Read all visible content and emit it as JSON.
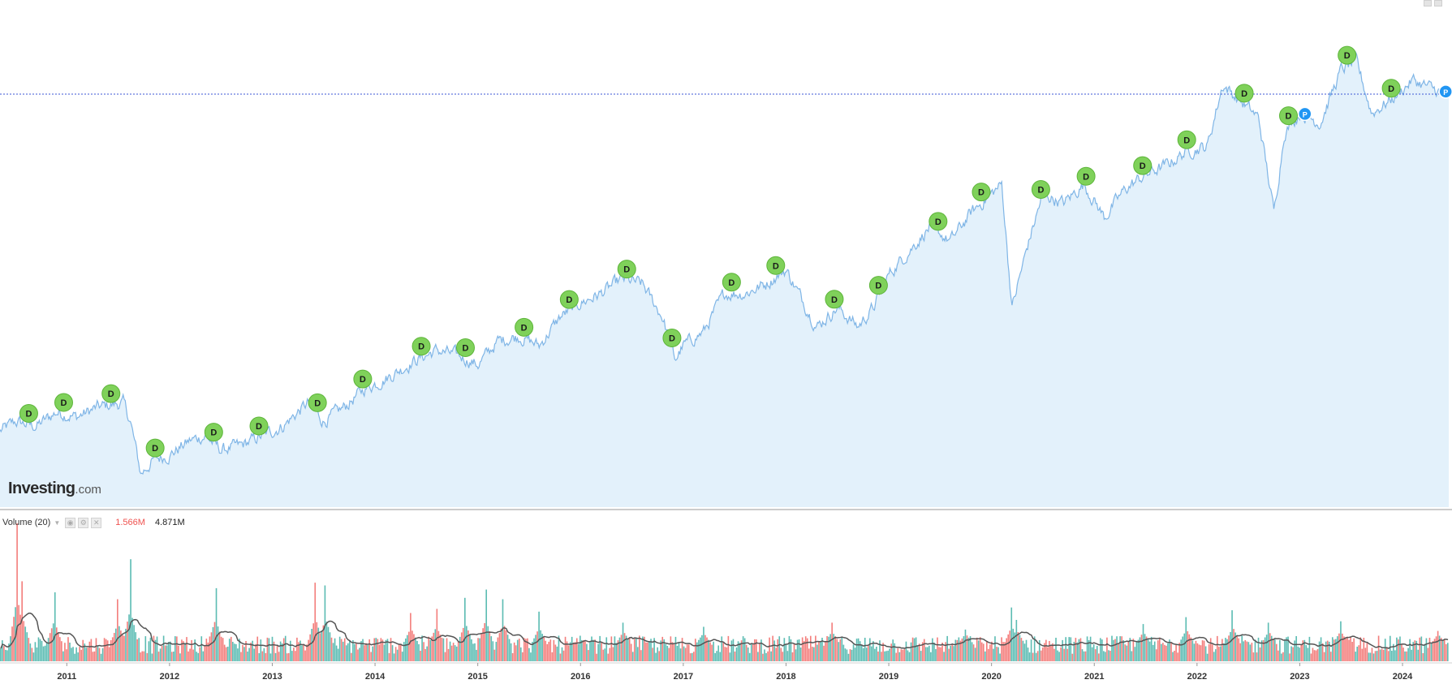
{
  "branding": {
    "logo_main": "Investing",
    "logo_suffix": ".com"
  },
  "volume_panel": {
    "title": "Volume (20)",
    "value_red": "1.566M",
    "value_black": "4.871M"
  },
  "colors": {
    "price_line": "#7fb5e6",
    "price_fill": "#e3f1fb",
    "ref_line": "#3b56d6",
    "dividend_marker": "#7fd15a",
    "dividend_marker_border": "#5db53a",
    "split_marker": "#2196f3",
    "volume_up": "#26a69a",
    "volume_down": "#ef5350",
    "volume_ma": "#555555"
  },
  "chart_data": [
    {
      "type": "area",
      "title": "",
      "xlabel": "",
      "ylabel": "",
      "x_ticks": [
        "2011",
        "2012",
        "2013",
        "2014",
        "2015",
        "2016",
        "2017",
        "2018",
        "2019",
        "2020",
        "2021",
        "2022",
        "2023",
        "2024"
      ],
      "x_range": [
        2010.35,
        2024.45
      ],
      "y_range": [
        0,
        100
      ],
      "y_axis_labels_visible": false,
      "grid": false,
      "reference_line": {
        "style": "dotted",
        "level": 87
      },
      "series": [
        {
          "values_relative": [
            [
              2010.35,
              16
            ],
            [
              2010.5,
              18
            ],
            [
              2010.7,
              17
            ],
            [
              2010.9,
              20
            ],
            [
              2011.1,
              19
            ],
            [
              2011.3,
              21
            ],
            [
              2011.55,
              22
            ],
            [
              2011.62,
              18
            ],
            [
              2011.72,
              7
            ],
            [
              2011.85,
              10
            ],
            [
              2012.0,
              11
            ],
            [
              2012.2,
              14
            ],
            [
              2012.35,
              15
            ],
            [
              2012.5,
              12
            ],
            [
              2012.7,
              13
            ],
            [
              2012.9,
              15
            ],
            [
              2013.1,
              17
            ],
            [
              2013.35,
              22
            ],
            [
              2013.5,
              18
            ],
            [
              2013.7,
              21
            ],
            [
              2013.9,
              25
            ],
            [
              2014.1,
              27
            ],
            [
              2014.4,
              31
            ],
            [
              2014.6,
              33
            ],
            [
              2014.8,
              32
            ],
            [
              2015.0,
              30
            ],
            [
              2015.2,
              35
            ],
            [
              2015.4,
              36
            ],
            [
              2015.6,
              34
            ],
            [
              2015.8,
              40
            ],
            [
              2016.0,
              43
            ],
            [
              2016.2,
              45
            ],
            [
              2016.4,
              48
            ],
            [
              2016.6,
              47
            ],
            [
              2016.8,
              40
            ],
            [
              2016.92,
              31
            ],
            [
              2017.0,
              34
            ],
            [
              2017.2,
              37
            ],
            [
              2017.4,
              45
            ],
            [
              2017.6,
              45
            ],
            [
              2017.8,
              47
            ],
            [
              2018.0,
              50
            ],
            [
              2018.15,
              44
            ],
            [
              2018.3,
              38
            ],
            [
              2018.5,
              42
            ],
            [
              2018.7,
              38
            ],
            [
              2018.85,
              42
            ],
            [
              2019.0,
              49
            ],
            [
              2019.2,
              54
            ],
            [
              2019.4,
              59
            ],
            [
              2019.6,
              56
            ],
            [
              2019.8,
              62
            ],
            [
              2020.1,
              68
            ],
            [
              2020.2,
              42
            ],
            [
              2020.35,
              55
            ],
            [
              2020.5,
              66
            ],
            [
              2020.7,
              64
            ],
            [
              2020.9,
              68
            ],
            [
              2021.1,
              61
            ],
            [
              2021.3,
              67
            ],
            [
              2021.5,
              70
            ],
            [
              2021.7,
              72
            ],
            [
              2021.9,
              75
            ],
            [
              2022.1,
              76
            ],
            [
              2022.25,
              89
            ],
            [
              2022.4,
              86
            ],
            [
              2022.6,
              82
            ],
            [
              2022.75,
              62
            ],
            [
              2022.85,
              79
            ],
            [
              2023.0,
              83
            ],
            [
              2023.2,
              81
            ],
            [
              2023.4,
              92
            ],
            [
              2023.55,
              94
            ],
            [
              2023.7,
              83
            ],
            [
              2023.9,
              86
            ],
            [
              2024.1,
              90
            ],
            [
              2024.3,
              88
            ],
            [
              2024.45,
              87
            ]
          ]
        }
      ],
      "event_markers": [
        {
          "label": "D",
          "x": 2010.63
        },
        {
          "label": "D",
          "x": 2010.97
        },
        {
          "label": "D",
          "x": 2011.43
        },
        {
          "label": "D",
          "x": 2011.86
        },
        {
          "label": "D",
          "x": 2012.43
        },
        {
          "label": "D",
          "x": 2012.87
        },
        {
          "label": "D",
          "x": 2013.44
        },
        {
          "label": "D",
          "x": 2013.88
        },
        {
          "label": "D",
          "x": 2014.45
        },
        {
          "label": "D",
          "x": 2014.88
        },
        {
          "label": "D",
          "x": 2015.45
        },
        {
          "label": "D",
          "x": 2015.89
        },
        {
          "label": "D",
          "x": 2016.45
        },
        {
          "label": "D",
          "x": 2016.89
        },
        {
          "label": "D",
          "x": 2017.47
        },
        {
          "label": "D",
          "x": 2017.9
        },
        {
          "label": "D",
          "x": 2018.47
        },
        {
          "label": "D",
          "x": 2018.9
        },
        {
          "label": "D",
          "x": 2019.48
        },
        {
          "label": "D",
          "x": 2019.9
        },
        {
          "label": "D",
          "x": 2020.48
        },
        {
          "label": "D",
          "x": 2020.92
        },
        {
          "label": "D",
          "x": 2021.47
        },
        {
          "label": "D",
          "x": 2021.9
        },
        {
          "label": "D",
          "x": 2022.46
        },
        {
          "label": "D",
          "x": 2022.89
        },
        {
          "label": "P",
          "x": 2023.05
        },
        {
          "label": "D",
          "x": 2023.46
        },
        {
          "label": "D",
          "x": 2023.89
        },
        {
          "label": "P",
          "x": 2024.42
        }
      ]
    },
    {
      "type": "bar",
      "title": "Volume (20)",
      "x_range": [
        2010.35,
        2024.45
      ],
      "y_axis_labels_visible": false,
      "baseline_relative": 0.12,
      "moving_average": 20,
      "spikes_relative": [
        [
          2010.52,
          1.0
        ],
        [
          2010.57,
          0.58
        ],
        [
          2010.88,
          0.5
        ],
        [
          2011.5,
          0.45
        ],
        [
          2011.62,
          0.74
        ],
        [
          2012.45,
          0.53
        ],
        [
          2013.42,
          0.57
        ],
        [
          2013.52,
          0.55
        ],
        [
          2014.35,
          0.35
        ],
        [
          2014.6,
          0.38
        ],
        [
          2014.88,
          0.46
        ],
        [
          2015.08,
          0.52
        ],
        [
          2015.25,
          0.45
        ],
        [
          2015.6,
          0.36
        ],
        [
          2016.42,
          0.28
        ],
        [
          2017.2,
          0.25
        ],
        [
          2018.45,
          0.28
        ],
        [
          2019.75,
          0.23
        ],
        [
          2020.2,
          0.39
        ],
        [
          2020.25,
          0.3
        ],
        [
          2021.48,
          0.27
        ],
        [
          2021.9,
          0.32
        ],
        [
          2022.35,
          0.37
        ],
        [
          2022.7,
          0.28
        ],
        [
          2023.4,
          0.29
        ],
        [
          2024.35,
          0.22
        ]
      ]
    }
  ]
}
